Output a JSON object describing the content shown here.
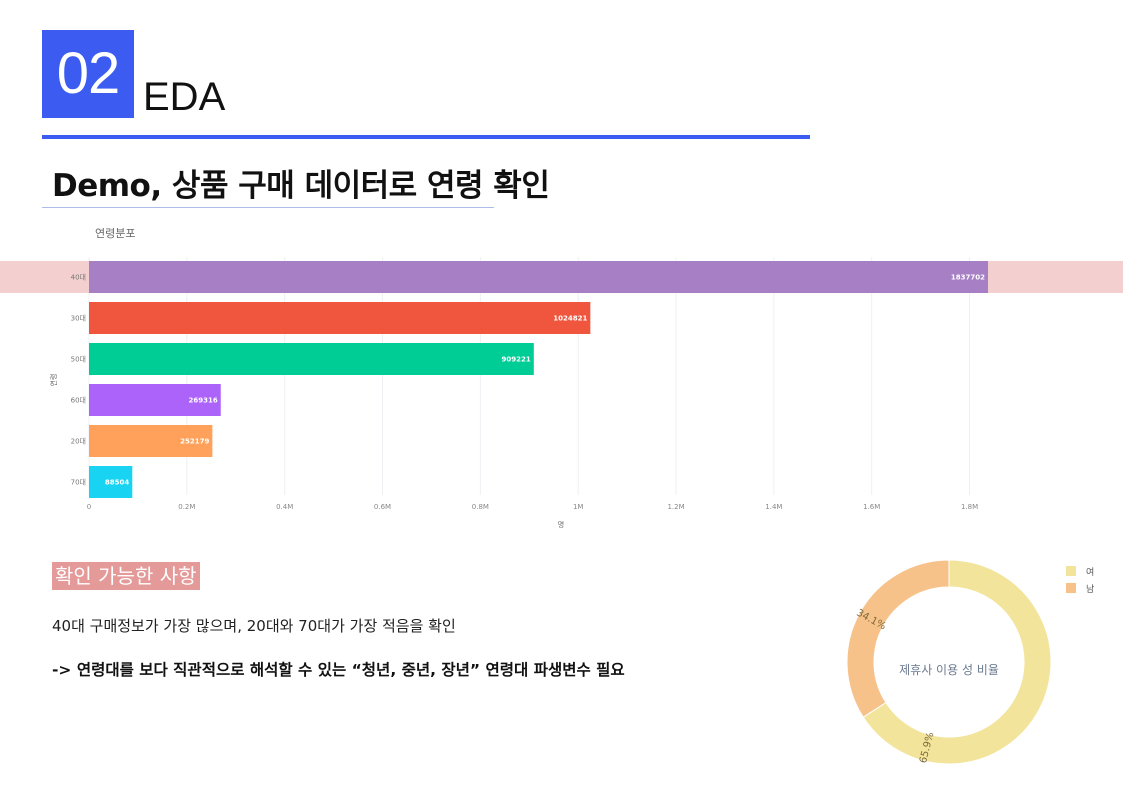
{
  "header": {
    "section_number": "02",
    "section_title": "EDA",
    "slide_title": "Demo, 상품 구매 데이터로 연령 확인"
  },
  "colors": {
    "accent": "#3b5bf1",
    "highlight_row": "#f3cfcf",
    "note_badge": "#e59a9a"
  },
  "chart_data": [
    {
      "type": "bar",
      "orientation": "horizontal",
      "title": "연령분포",
      "xlabel": "명",
      "ylabel": "연령",
      "categories": [
        "40대",
        "30대",
        "50대",
        "60대",
        "20대",
        "70대"
      ],
      "values": [
        1837702,
        1024821,
        909221,
        269316,
        252179,
        88504
      ],
      "bar_colors": [
        "#a67fc5",
        "#f0553d",
        "#00cc96",
        "#ab63fa",
        "#ffa15a",
        "#19d3f3"
      ],
      "highlighted_category": "40대",
      "xlim": [
        0,
        1950000
      ],
      "x_ticks": [
        0,
        200000,
        400000,
        600000,
        800000,
        1000000,
        1200000,
        1400000,
        1600000,
        1800000
      ],
      "x_tick_labels": [
        "0",
        "0.2M",
        "0.4M",
        "0.6M",
        "0.8M",
        "1M",
        "1.2M",
        "1.4M",
        "1.6M",
        "1.8M"
      ],
      "grid": true
    },
    {
      "type": "pie",
      "hole": true,
      "center_label": "제휴사 이용 성 비율",
      "labels": [
        "여",
        "남"
      ],
      "values": [
        65.9,
        34.1
      ],
      "value_labels": [
        "65.9%",
        "34.1%"
      ],
      "colors": [
        "#f3e49c",
        "#f7c28a"
      ],
      "legend_position": "top-right"
    }
  ],
  "notes": {
    "title": "확인 가능한 사항",
    "line1": "40대 구매정보가 가장 많으며, 20대와 70대가 가장 적음을 확인",
    "line2": "-> 연령대를 보다 직관적으로 해석할 수 있는 “청년, 중년, 장년” 연령대 파생변수 필요"
  }
}
